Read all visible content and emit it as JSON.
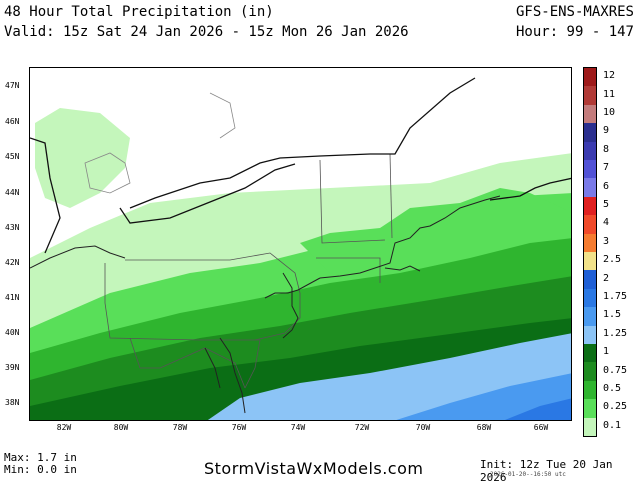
{
  "header": {
    "title": "48 Hour Total Precipitation (in)",
    "valid": "Valid: 15z Sat 24 Jan 2026 - 15z Mon 26 Jan 2026",
    "model": "GFS-ENS-MAXRES",
    "hour": "Hour: 99 - 147"
  },
  "map": {
    "lat_labels": [
      "47N",
      "46N",
      "45N",
      "44N",
      "43N",
      "42N",
      "41N",
      "40N",
      "39N",
      "38N"
    ],
    "lon_labels": [
      "82W",
      "80W",
      "78W",
      "76W",
      "74W",
      "72W",
      "70W",
      "68W",
      "66W"
    ]
  },
  "legend": {
    "levels": [
      "12",
      "11",
      "10",
      "9",
      "8",
      "7",
      "6",
      "5",
      "4",
      "3",
      "2.5",
      "2",
      "1.75",
      "1.5",
      "1.25",
      "1",
      "0.75",
      "0.5",
      "0.25",
      "0.1"
    ],
    "colors": [
      "#9e1a1a",
      "#b13a36",
      "#c47c7c",
      "#2b2f8f",
      "#3b3bb0",
      "#5252d6",
      "#7a7ae8",
      "#e02020",
      "#f04a2a",
      "#f57c30",
      "#f2e28a",
      "#1f5fd6",
      "#2a78e4",
      "#4a9af0",
      "#8cc4f6",
      "#0b6e15",
      "#1d8c1f",
      "#2fb52f",
      "#59df59",
      "#c4f6bb"
    ]
  },
  "footer": {
    "max": "Max: 1.7 in",
    "min": "Min: 0.0 in",
    "site": "StormVistaWxModels.com",
    "init": "Init: 12z Tue 20 Jan 2026",
    "stamp": "2026-01-20--16:50 utc"
  }
}
